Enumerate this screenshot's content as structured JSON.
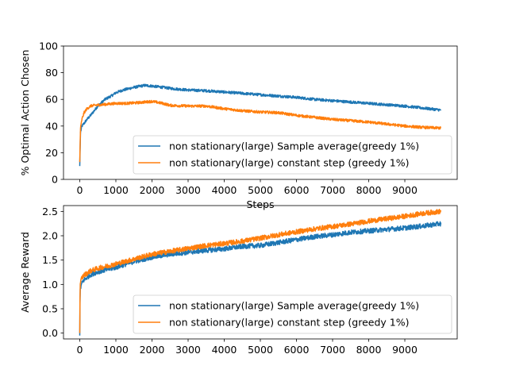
{
  "chart_data": [
    {
      "type": "line",
      "title": "",
      "xlabel": "Steps",
      "ylabel": "% Optimal Action Chosen",
      "xlim": [
        -450,
        10450
      ],
      "ylim": [
        0,
        100
      ],
      "xticks": [
        0,
        1000,
        2000,
        3000,
        4000,
        5000,
        6000,
        7000,
        8000,
        9000
      ],
      "xtick_labels": [
        "0",
        "1000",
        "2000",
        "3000",
        "4000",
        "5000",
        "6000",
        "7000",
        "8000",
        "9000"
      ],
      "yticks": [
        0,
        20,
        40,
        60,
        80,
        100
      ],
      "ytick_labels": [
        "0",
        "20",
        "40",
        "60",
        "80",
        "100"
      ],
      "grid": false,
      "legend_position": "lower-right",
      "series": [
        {
          "name": "non stationary(large) Sample average(greedy 1%)",
          "color": "#1f77b4",
          "noise": 1.0,
          "x": [
            0,
            20,
            60,
            120,
            200,
            300,
            500,
            700,
            900,
            1000,
            1200,
            1500,
            1800,
            2000,
            2300,
            2600,
            3000,
            3500,
            4000,
            4500,
            5000,
            5500,
            6000,
            6500,
            7000,
            7500,
            8000,
            8500,
            9000,
            9500,
            9999
          ],
          "y": [
            10,
            35,
            40,
            42,
            45,
            48,
            55,
            60,
            63,
            65,
            67,
            69,
            70.5,
            70,
            69,
            68,
            67,
            66.5,
            65.5,
            64.5,
            63.5,
            62.5,
            61.5,
            60,
            59,
            58,
            57,
            56,
            55,
            53.5,
            52
          ]
        },
        {
          "name": "non stationary(large) constant step (greedy 1%)",
          "color": "#ff7f0e",
          "noise": 1.0,
          "x": [
            0,
            20,
            60,
            120,
            200,
            300,
            400,
            600,
            800,
            1000,
            1300,
            1600,
            2000,
            2300,
            2500,
            3000,
            3500,
            4000,
            4500,
            5000,
            5500,
            6000,
            6500,
            7000,
            7500,
            8000,
            8500,
            9000,
            9500,
            9999
          ],
          "y": [
            13,
            38,
            45,
            50,
            53,
            55,
            55.5,
            56,
            56.5,
            57,
            57,
            57.5,
            58.5,
            57,
            55.5,
            55,
            55,
            53,
            51.5,
            50.5,
            50,
            48,
            46.5,
            45,
            44,
            43,
            41.5,
            40,
            39,
            38.5
          ]
        }
      ]
    },
    {
      "type": "line",
      "title": "",
      "xlabel": "",
      "ylabel": "Average Reward",
      "xlim": [
        -450,
        10450
      ],
      "ylim": [
        -0.12,
        2.62
      ],
      "xticks": [
        0,
        1000,
        2000,
        3000,
        4000,
        5000,
        6000,
        7000,
        8000,
        9000
      ],
      "xtick_labels": [
        "0",
        "1000",
        "2000",
        "3000",
        "4000",
        "5000",
        "6000",
        "7000",
        "8000",
        "9000"
      ],
      "yticks": [
        0,
        0.5,
        1.0,
        1.5,
        2.0,
        2.5
      ],
      "ytick_labels": [
        "0.0",
        "0.5",
        "1.0",
        "1.5",
        "2.0",
        "2.5"
      ],
      "grid": false,
      "legend_position": "lower-right",
      "series": [
        {
          "name": "non stationary(large) Sample average(greedy 1%)",
          "color": "#1f77b4",
          "noise": 0.05,
          "x": [
            0,
            10,
            50,
            100,
            300,
            500,
            1000,
            1500,
            2000,
            2500,
            3000,
            3500,
            4000,
            4500,
            5000,
            5500,
            6000,
            6500,
            7000,
            7500,
            8000,
            8500,
            9000,
            9500,
            9999
          ],
          "y": [
            -0.05,
            0.9,
            1.0,
            1.08,
            1.2,
            1.26,
            1.35,
            1.47,
            1.56,
            1.62,
            1.66,
            1.7,
            1.73,
            1.78,
            1.8,
            1.86,
            1.92,
            1.98,
            2.02,
            2.07,
            2.1,
            2.13,
            2.16,
            2.2,
            2.25
          ]
        },
        {
          "name": "non stationary(large) constant step (greedy 1%)",
          "color": "#ff7f0e",
          "noise": 0.05,
          "x": [
            0,
            10,
            50,
            100,
            300,
            500,
            1000,
            1500,
            2000,
            2500,
            3000,
            3500,
            4000,
            4500,
            5000,
            5500,
            6000,
            6500,
            7000,
            7500,
            8000,
            8500,
            9000,
            9500,
            9999
          ],
          "y": [
            0.0,
            1.0,
            1.12,
            1.18,
            1.28,
            1.33,
            1.42,
            1.52,
            1.62,
            1.68,
            1.74,
            1.8,
            1.84,
            1.89,
            1.95,
            2.02,
            2.08,
            2.14,
            2.19,
            2.24,
            2.3,
            2.35,
            2.4,
            2.46,
            2.5
          ]
        }
      ]
    }
  ]
}
